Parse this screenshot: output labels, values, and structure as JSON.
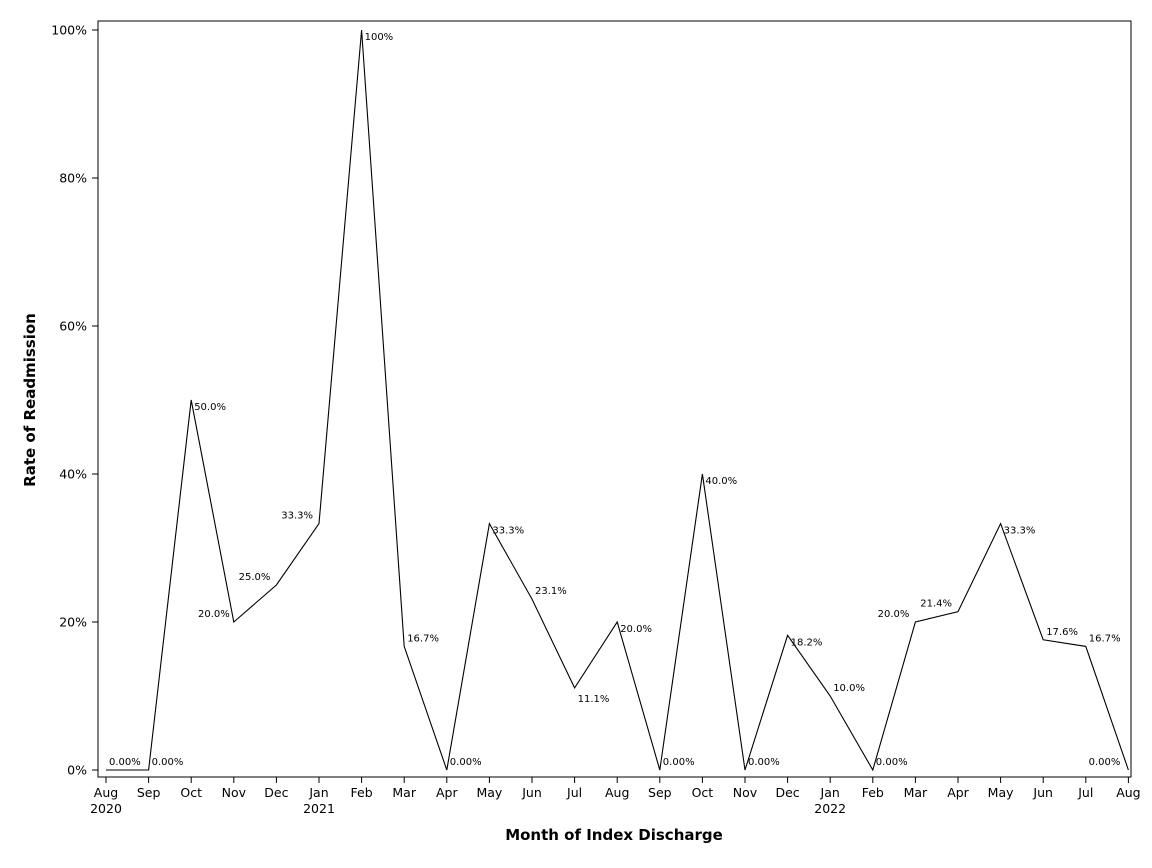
{
  "chart_data": {
    "type": "line",
    "title": "",
    "xlabel": "Month of Index Discharge",
    "ylabel": "Rate of Readmission",
    "ylim": [
      0,
      100
    ],
    "yticks": [
      "0%",
      "20%",
      "40%",
      "60%",
      "80%",
      "100%"
    ],
    "ytick_values": [
      0,
      20,
      40,
      60,
      80,
      100
    ],
    "grid": false,
    "legend": "none",
    "line_color": "#000000",
    "categories": [
      {
        "month": "Aug",
        "year": "2020"
      },
      {
        "month": "Sep",
        "year": ""
      },
      {
        "month": "Oct",
        "year": ""
      },
      {
        "month": "Nov",
        "year": ""
      },
      {
        "month": "Dec",
        "year": ""
      },
      {
        "month": "Jan",
        "year": "2021"
      },
      {
        "month": "Feb",
        "year": ""
      },
      {
        "month": "Mar",
        "year": ""
      },
      {
        "month": "Apr",
        "year": ""
      },
      {
        "month": "May",
        "year": ""
      },
      {
        "month": "Jun",
        "year": ""
      },
      {
        "month": "Jul",
        "year": ""
      },
      {
        "month": "Aug",
        "year": ""
      },
      {
        "month": "Sep",
        "year": ""
      },
      {
        "month": "Oct",
        "year": ""
      },
      {
        "month": "Nov",
        "year": ""
      },
      {
        "month": "Dec",
        "year": ""
      },
      {
        "month": "Jan",
        "year": "2022"
      },
      {
        "month": "Feb",
        "year": ""
      },
      {
        "month": "Mar",
        "year": ""
      },
      {
        "month": "Apr",
        "year": ""
      },
      {
        "month": "May",
        "year": ""
      },
      {
        "month": "Jun",
        "year": ""
      },
      {
        "month": "Jul",
        "year": ""
      },
      {
        "month": "Aug",
        "year": ""
      }
    ],
    "values": [
      0,
      0,
      50,
      20,
      25,
      33.3,
      100,
      16.7,
      0,
      33.3,
      23.1,
      11.1,
      20,
      0,
      40,
      0,
      18.2,
      10,
      0,
      20,
      21.4,
      33.3,
      17.6,
      16.7,
      0
    ],
    "labels": [
      "0.00%",
      "0.00%",
      "50.0%",
      "20.0%",
      "25.0%",
      "33.3%",
      "100%",
      "16.7%",
      "0.00%",
      "33.3%",
      "23.1%",
      "11.1%",
      "20.0%",
      "0.00%",
      "40.0%",
      "0.00%",
      "18.2%",
      "10.0%",
      "0.00%",
      "20.0%",
      "21.4%",
      "33.3%",
      "17.6%",
      "16.7%",
      "0.00%"
    ]
  }
}
